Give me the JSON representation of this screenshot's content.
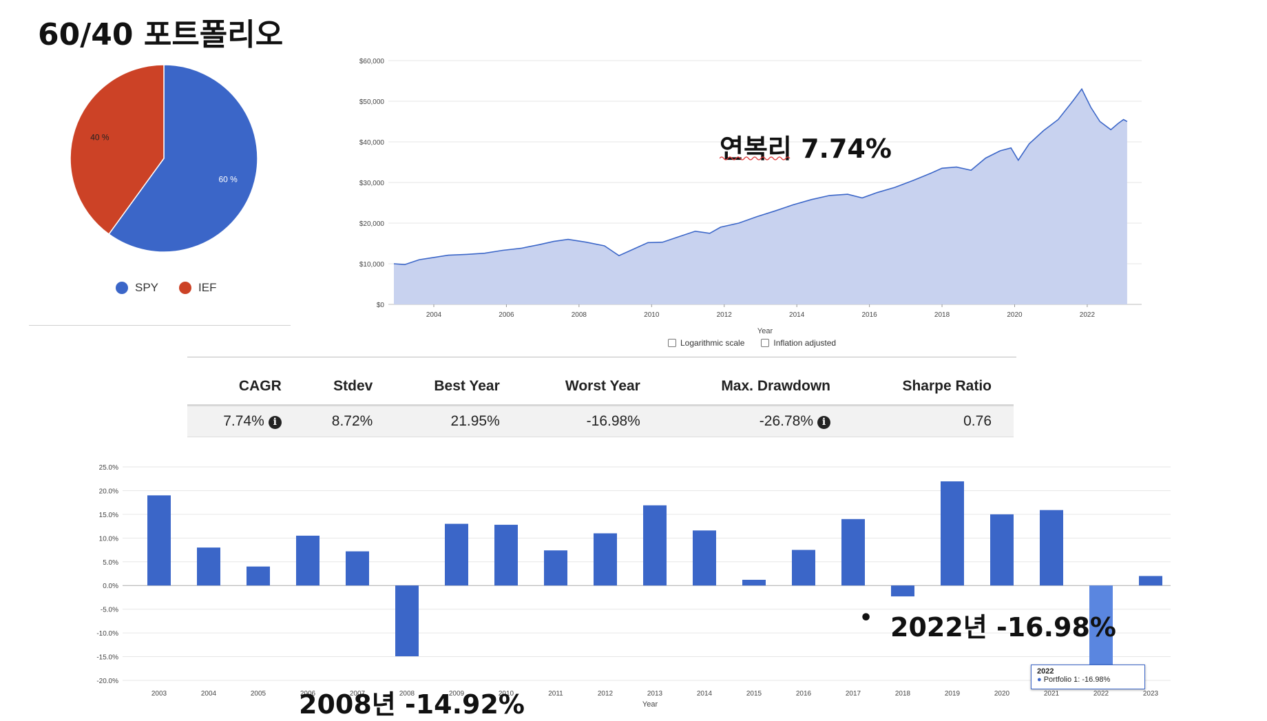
{
  "page": {
    "title": "60/40 포트폴리오",
    "annotation_cagr": "연복리 7.74%",
    "annotation_2008": "2008년 -14.92%",
    "annotation_2022": "2022년 -16.98%",
    "bullet": "•"
  },
  "colors": {
    "spy": "#3b66c8",
    "ief": "#cc4226",
    "bar": "#3b66c8",
    "bar_hover": "#5a86e0",
    "growth_line": "#3b66c8",
    "growth_fill": "#c8d2ef"
  },
  "pie": {
    "slices": [
      {
        "name": "SPY",
        "value": 60,
        "label": "60 %"
      },
      {
        "name": "IEF",
        "value": 40,
        "label": "40 %"
      }
    ]
  },
  "growth_controls": {
    "log_scale_label": "Logarithmic scale",
    "inflation_label": "Inflation adjusted"
  },
  "stats": {
    "headers": [
      "CAGR",
      "Stdev",
      "Best Year",
      "Worst Year",
      "Max. Drawdown",
      "Sharpe Ratio"
    ],
    "values": [
      "7.74%",
      "8.72%",
      "21.95%",
      "-16.98%",
      "-26.78%",
      "0.76"
    ],
    "info_icon": "i"
  },
  "tooltip": {
    "year": "2022",
    "text": "Portfolio 1: -16.98%"
  },
  "chart_data": [
    {
      "type": "pie",
      "categories": [
        "SPY",
        "IEF"
      ],
      "values": [
        60,
        40
      ],
      "legend": "bottom"
    },
    {
      "type": "area",
      "xlabel": "Year",
      "ylabel": "",
      "xlim": [
        2003,
        2023.2
      ],
      "ylim": [
        0,
        60000
      ],
      "yticks": [
        0,
        10000,
        20000,
        30000,
        40000,
        50000,
        60000
      ],
      "ytick_labels": [
        "$0",
        "$10,000",
        "$20,000",
        "$30,000",
        "$40,000",
        "$50,000",
        "$60,000"
      ],
      "xtick_labels": [
        "2004",
        "2006",
        "2008",
        "2010",
        "2012",
        "2014",
        "2016",
        "2018",
        "2020",
        "2022"
      ],
      "grid": true,
      "x": [
        2003.0,
        2003.3,
        2003.7,
        2004.0,
        2004.5,
        2005.0,
        2005.5,
        2006.0,
        2006.5,
        2007.0,
        2007.4,
        2007.8,
        2008.3,
        2008.8,
        2009.2,
        2009.5,
        2010.0,
        2010.4,
        2010.8,
        2011.3,
        2011.7,
        2012.0,
        2012.5,
        2013.0,
        2013.5,
        2014.0,
        2014.5,
        2015.0,
        2015.5,
        2015.9,
        2016.3,
        2016.8,
        2017.3,
        2017.8,
        2018.1,
        2018.5,
        2018.9,
        2019.3,
        2019.7,
        2020.0,
        2020.2,
        2020.5,
        2020.9,
        2021.3,
        2021.7,
        2021.95,
        2022.2,
        2022.45,
        2022.75,
        2022.95,
        2023.1,
        2023.2
      ],
      "values": [
        10000,
        9800,
        11000,
        11400,
        12100,
        12300,
        12600,
        13300,
        13800,
        14700,
        15500,
        16000,
        15300,
        14400,
        12000,
        13200,
        15200,
        15300,
        16500,
        18000,
        17500,
        19000,
        20000,
        21600,
        23000,
        24500,
        25800,
        26800,
        27100,
        26200,
        27500,
        28800,
        30500,
        32300,
        33500,
        33800,
        33000,
        36000,
        37800,
        38500,
        35500,
        39500,
        42800,
        45500,
        50000,
        53000,
        48500,
        45000,
        43000,
        44500,
        45500,
        45000
      ],
      "legend": "none"
    },
    {
      "type": "bar",
      "xlabel": "Year",
      "ylabel": "",
      "ylim": [
        -20,
        25
      ],
      "yticks": [
        -20,
        -15,
        -10,
        -5,
        0,
        5,
        10,
        15,
        20,
        25
      ],
      "ytick_labels": [
        "-20.0%",
        "-15.0%",
        "-10.0%",
        "-5.0%",
        "0.0%",
        "5.0%",
        "10.0%",
        "15.0%",
        "20.0%",
        "25.0%"
      ],
      "categories": [
        "2003",
        "2004",
        "2005",
        "2006",
        "2007",
        "2008",
        "2009",
        "2010",
        "2011",
        "2012",
        "2013",
        "2014",
        "2015",
        "2016",
        "2017",
        "2018",
        "2019",
        "2020",
        "2021",
        "2022",
        "2023"
      ],
      "xtick_labels": [
        "2003",
        "2004",
        "2005",
        "2006",
        "2007",
        "2008",
        "2009",
        "2010",
        "2011",
        "2012",
        "2013",
        "2014",
        "2015",
        "2016",
        "2017",
        "2018",
        "2019",
        "2020",
        "2021",
        "2022",
        "2023"
      ],
      "values": [
        19.0,
        8.0,
        4.0,
        10.5,
        7.2,
        -14.92,
        13.0,
        12.8,
        7.4,
        11.0,
        16.9,
        11.6,
        1.2,
        7.5,
        14.0,
        -2.3,
        21.95,
        15.0,
        15.9,
        -16.98,
        2.0
      ],
      "grid": true,
      "legend": "none"
    }
  ]
}
